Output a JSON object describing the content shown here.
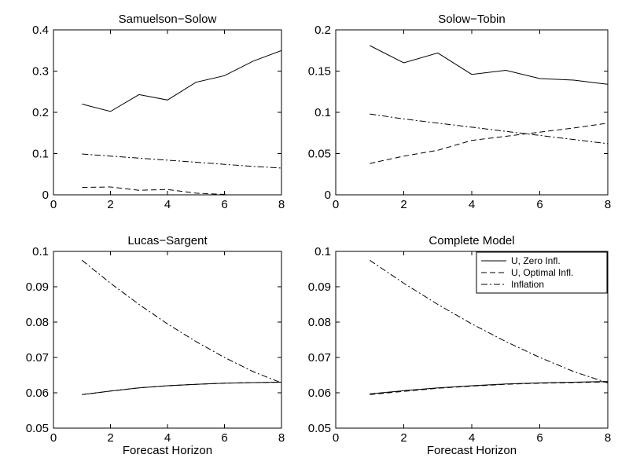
{
  "chart_data": [
    {
      "type": "line",
      "title": "Samuelson−Solow",
      "xlabel": "",
      "ylabel": "",
      "xlim": [
        0,
        8
      ],
      "ylim": [
        0,
        0.4
      ],
      "xticks": [
        "0",
        "2",
        "4",
        "6",
        "8"
      ],
      "yticks": [
        "0",
        "0.1",
        "0.2",
        "0.3",
        "0.4"
      ],
      "x": [
        1,
        2,
        3,
        4,
        5,
        6,
        7,
        8
      ],
      "series": [
        {
          "style": "solid",
          "values": [
            0.22,
            0.202,
            0.243,
            0.23,
            0.273,
            0.289,
            0.324,
            0.35
          ]
        },
        {
          "style": "dashed",
          "values": [
            0.018,
            0.019,
            0.011,
            0.013,
            0.004,
            0.001,
            -0.005,
            -0.01
          ]
        },
        {
          "style": "dashdot",
          "values": [
            0.099,
            0.094,
            0.089,
            0.084,
            0.079,
            0.074,
            0.069,
            0.065
          ]
        }
      ]
    },
    {
      "type": "line",
      "title": "Solow−Tobin",
      "xlabel": "",
      "ylabel": "",
      "xlim": [
        0,
        8
      ],
      "ylim": [
        0,
        0.2
      ],
      "xticks": [
        "0",
        "2",
        "4",
        "6",
        "8"
      ],
      "yticks": [
        "0",
        "0.05",
        "0.1",
        "0.15",
        "0.2"
      ],
      "x": [
        1,
        2,
        3,
        4,
        5,
        6,
        7,
        8
      ],
      "series": [
        {
          "style": "solid",
          "values": [
            0.181,
            0.16,
            0.172,
            0.146,
            0.151,
            0.141,
            0.139,
            0.134
          ]
        },
        {
          "style": "dashed",
          "values": [
            0.038,
            0.047,
            0.054,
            0.066,
            0.071,
            0.076,
            0.081,
            0.087
          ]
        },
        {
          "style": "dashdot",
          "values": [
            0.098,
            0.092,
            0.087,
            0.082,
            0.077,
            0.072,
            0.067,
            0.062
          ]
        }
      ]
    },
    {
      "type": "line",
      "title": "Lucas−Sargent",
      "xlabel": "Forecast Horizon",
      "ylabel": "",
      "xlim": [
        0,
        8
      ],
      "ylim": [
        0.05,
        0.1
      ],
      "xticks": [
        "0",
        "2",
        "4",
        "6",
        "8"
      ],
      "yticks": [
        "0.05",
        "0.06",
        "0.07",
        "0.08",
        "0.09",
        "0.1"
      ],
      "x": [
        1,
        2,
        3,
        4,
        5,
        6,
        7,
        8
      ],
      "series": [
        {
          "style": "solid",
          "values": [
            0.0595,
            0.0605,
            0.0614,
            0.062,
            0.0624,
            0.0627,
            0.0629,
            0.063
          ]
        },
        {
          "style": "dashed",
          "values": [
            0.0595,
            0.0605,
            0.0614,
            0.062,
            0.0624,
            0.0627,
            0.0629,
            0.063
          ]
        },
        {
          "style": "dashdot",
          "values": [
            0.0975,
            0.091,
            0.085,
            0.0795,
            0.0745,
            0.07,
            0.066,
            0.0628
          ]
        }
      ]
    },
    {
      "type": "line",
      "title": "Complete Model",
      "xlabel": "Forecast Horizon",
      "ylabel": "",
      "xlim": [
        0,
        8
      ],
      "ylim": [
        0.05,
        0.1
      ],
      "xticks": [
        "0",
        "2",
        "4",
        "6",
        "8"
      ],
      "yticks": [
        "0.05",
        "0.06",
        "0.07",
        "0.08",
        "0.09",
        "0.1"
      ],
      "x": [
        1,
        2,
        3,
        4,
        5,
        6,
        7,
        8
      ],
      "legend": {
        "placement": "top-right",
        "entries": [
          "U, Zero Infl.",
          "U, Optimal Infl.",
          "Inflation"
        ]
      },
      "series": [
        {
          "name": "U, Zero Infl.",
          "style": "solid",
          "values": [
            0.0597,
            0.0606,
            0.0614,
            0.062,
            0.0625,
            0.0628,
            0.063,
            0.0632
          ]
        },
        {
          "name": "U, Optimal Infl.",
          "style": "dashed",
          "values": [
            0.0595,
            0.0604,
            0.0613,
            0.0619,
            0.0624,
            0.0627,
            0.0629,
            0.0631
          ]
        },
        {
          "name": "Inflation",
          "style": "dashdot",
          "values": [
            0.0975,
            0.091,
            0.085,
            0.0795,
            0.0745,
            0.07,
            0.066,
            0.0628
          ]
        }
      ]
    }
  ]
}
